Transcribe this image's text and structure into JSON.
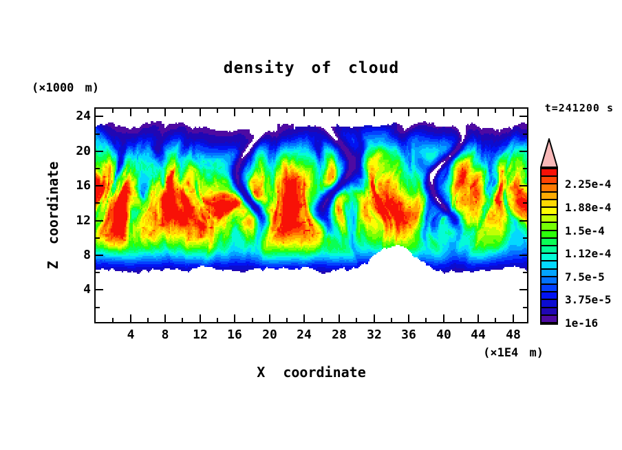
{
  "title": "density of cloud",
  "time_label": "t=241200 s",
  "axes": {
    "x": {
      "label": "X coordinate",
      "units": "(×1E4 m)",
      "range": [
        0,
        49.6
      ],
      "major_ticks": [
        4,
        8,
        12,
        16,
        20,
        24,
        28,
        32,
        36,
        40,
        44,
        48
      ],
      "minor_ticks": [
        2,
        6,
        10,
        14,
        18,
        22,
        26,
        30,
        34,
        38,
        42,
        46
      ]
    },
    "z": {
      "label": "Z coordinate",
      "units": "(×1000 m)",
      "range": [
        0.3,
        24.9
      ],
      "major_ticks": [
        4,
        8,
        12,
        16,
        20,
        24
      ],
      "minor_ticks": [
        2,
        6,
        10,
        14,
        18,
        22
      ]
    }
  },
  "colorbar": {
    "tick_labels_bottom_to_top": [
      "1e-16",
      "3.75e-5",
      "7.5e-5",
      "1.12e-4",
      "1.5e-4",
      "1.88e-4",
      "2.25e-4"
    ],
    "labels_every_n_cells": 3,
    "cell_colors_bottom_to_top": [
      "#4e0aa2",
      "#2007b4",
      "#0b0cd0",
      "#0213f2",
      "#0340ff",
      "#0372ff",
      "#03a4ff",
      "#04d8ff",
      "#04fbd7",
      "#04ff96",
      "#0aff55",
      "#2cff0a",
      "#76ff05",
      "#c0ff04",
      "#fdfc03",
      "#ffd802",
      "#ffaa02",
      "#ff7a02",
      "#ff4403",
      "#f81107"
    ],
    "overflow_arrow_color": "#f8b8b8",
    "border_color": "#000000"
  },
  "chart_data": {
    "type": "heatmap",
    "title": "density of cloud",
    "xlabel": "X coordinate",
    "x_units": "×1E4 m",
    "ylabel": "Z coordinate",
    "y_units": "×1000 m",
    "time_label": "t=241200 s",
    "time_seconds": 241200,
    "xlim": [
      0,
      49.6
    ],
    "ylim": [
      0.3,
      24.9
    ],
    "background_below_first_level": "#ffffff",
    "contour_levels": [
      1e-16,
      1.25e-05,
      2.5e-05,
      3.75e-05,
      5e-05,
      6.25e-05,
      7.5e-05,
      8.75e-05,
      0.0001,
      0.0001125,
      0.000125,
      0.0001375,
      0.00015,
      0.0001625,
      0.000175,
      0.0001875,
      0.0002,
      0.0002125,
      0.000225,
      0.0002375,
      0.00025
    ],
    "colorbar_tick_labels": [
      "1e-16",
      "3.75e-5",
      "7.5e-5",
      "1.12e-4",
      "1.5e-4",
      "1.88e-4",
      "2.25e-4"
    ],
    "palette": [
      "#4e0aa2",
      "#2007b4",
      "#0b0cd0",
      "#0213f2",
      "#0340ff",
      "#0372ff",
      "#03a4ff",
      "#04d8ff",
      "#04fbd7",
      "#04ff96",
      "#0aff55",
      "#2cff0a",
      "#76ff05",
      "#c0ff04",
      "#fdfc03",
      "#ffd802",
      "#ffaa02",
      "#ff7a02",
      "#ff4403",
      "#f81107"
    ],
    "field_summary": {
      "description": "Turbulent stratiform cloud deck spanning the full x-range; zero density (white) below the ragged cloud base (~6 ×1000 m) and above the ragged purple cloud top (~23 ×1000 m); yellow/orange high-density core between ~10 and ~17; horizontally stratified rainbow banding at cloud base; deep purple/blue downdraft intrusions cutting the core.",
      "cloud_base": 6,
      "cloud_top": 23,
      "core_band": [
        10,
        17
      ],
      "peak_density_approx": 0.00024
    },
    "render_model": {
      "seed": 7,
      "grid": [
        314,
        155
      ],
      "white_threshold": 0.024,
      "value_clamp": 0.975,
      "profile_z_v": [
        [
          5.6,
          0.03
        ],
        [
          6.2,
          0.08
        ],
        [
          7.0,
          0.18
        ],
        [
          8.0,
          0.34
        ],
        [
          9.0,
          0.5
        ],
        [
          10.2,
          0.62
        ],
        [
          11.5,
          0.7
        ],
        [
          13.0,
          0.74
        ],
        [
          15.5,
          0.74
        ],
        [
          17.0,
          0.68
        ],
        [
          18.3,
          0.56
        ],
        [
          19.6,
          0.42
        ],
        [
          20.8,
          0.28
        ],
        [
          21.8,
          0.16
        ],
        [
          22.6,
          0.07
        ],
        [
          23.4,
          0.03
        ]
      ],
      "layer_warp_amp_z": [
        [
          7,
          0.6
        ],
        [
          10,
          1.8
        ],
        [
          14,
          2.6
        ],
        [
          20,
          2.4
        ]
      ],
      "turbulence_amp_z": [
        [
          7,
          0.35
        ],
        [
          9.5,
          0.5
        ],
        [
          12,
          0.8
        ],
        [
          16,
          0.9
        ],
        [
          21,
          0.95
        ]
      ],
      "downdraft_channels": [
        [
          17.6,
          0.9,
          1.3
        ],
        [
          27.9,
          1.2,
          4.0
        ],
        [
          40.4,
          0.8,
          2.2
        ]
      ],
      "base_mean": 5.75,
      "base_jitter": 1.0,
      "base_gap_height": 3.4,
      "top_mean": 22.5,
      "top_jitter": 1.1,
      "top_slit_depth": 8
    }
  }
}
